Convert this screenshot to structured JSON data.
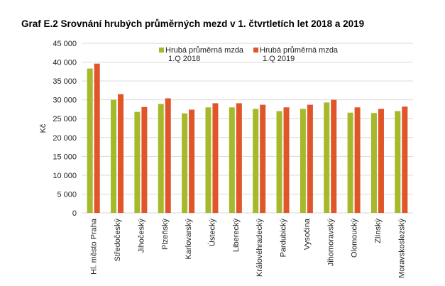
{
  "chart_data": {
    "type": "bar",
    "title": "Graf E.2 Srovnání hrubých průměrných mezd v 1. čtvrtletích let 2018 a 2019",
    "xlabel": "",
    "ylabel": "Kč",
    "ylim": [
      0,
      45000
    ],
    "yticks": [
      0,
      5000,
      10000,
      15000,
      20000,
      25000,
      30000,
      35000,
      40000,
      45000
    ],
    "ytick_labels": [
      "0",
      "5 000",
      "10 000",
      "15 000",
      "20 000",
      "25 000",
      "30 000",
      "35 000",
      "40 000",
      "45 000"
    ],
    "grid": true,
    "legend_position": "top-center",
    "categories": [
      "Hl. město Praha",
      "Středočeský",
      "Jihočeský",
      "Plzeňský",
      "Karlovarský",
      "Ústecký",
      "Liberecký",
      "Královéhradecký",
      "Pardubický",
      "Vysočina",
      "Jihomoravský",
      "Olomoucký",
      "Zlínský",
      "Moravskoslezský"
    ],
    "series": [
      {
        "name": "Hrubá průměrná mzda 1.Q 2018",
        "legend_lines": [
          "Hrubá průměrná mzda",
          "1.Q 2018"
        ],
        "color": "#a5b92a",
        "values": [
          38300,
          30000,
          26800,
          28900,
          26400,
          28000,
          28000,
          27600,
          27000,
          27600,
          29300,
          26600,
          26500,
          27000
        ]
      },
      {
        "name": "Hrubá průměrná mzda 1.Q 2019",
        "legend_lines": [
          "Hrubá průměrná mzda",
          "1.Q 2019"
        ],
        "color": "#e05529",
        "values": [
          39600,
          31500,
          28100,
          30400,
          27400,
          29100,
          29100,
          28700,
          28000,
          28700,
          30000,
          28000,
          27600,
          28200
        ]
      }
    ]
  }
}
